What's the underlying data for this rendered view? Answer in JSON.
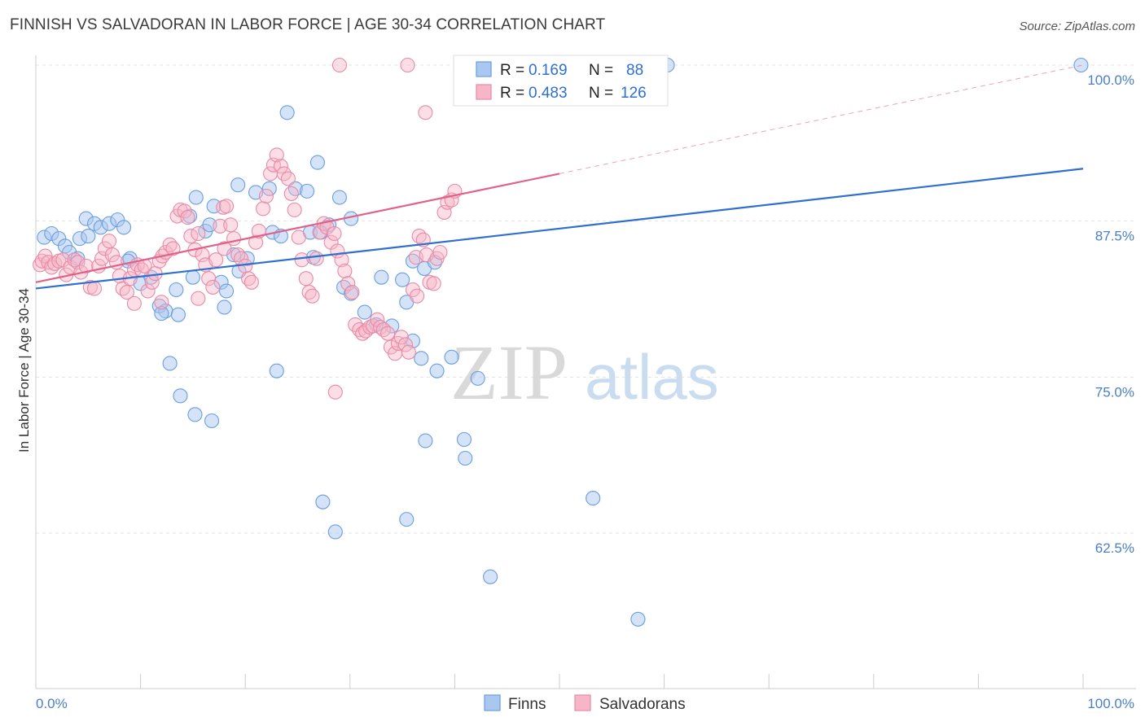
{
  "title": "FINNISH VS SALVADORAN IN LABOR FORCE | AGE 30-34 CORRELATION CHART",
  "source": "Source: ZipAtlas.com",
  "watermark": {
    "part1": "ZIP",
    "part2": "atlas"
  },
  "colors": {
    "finns_fill": "#a9c8f0",
    "finns_stroke": "#6a9ee0",
    "finns_line": "#2f6fd0",
    "salv_fill": "#f6b6c8",
    "salv_stroke": "#e88aa6",
    "salv_line": "#e0628a",
    "tick_text": "#4a7fc8",
    "grid": "#e2e2e2"
  },
  "legend_top": {
    "finns": {
      "r_label": "R =",
      "r_value": "0.169",
      "n_label": "N =",
      "n_value": "88"
    },
    "salvadorans": {
      "r_label": "R =",
      "r_value": "0.483",
      "n_label": "N =",
      "n_value": "126"
    }
  },
  "legend_bottom": {
    "finns": "Finns",
    "salvadorans": "Salvadorans"
  },
  "chart_data": {
    "type": "scatter",
    "title": "FINNISH VS SALVADORAN IN LABOR FORCE | AGE 30-34 CORRELATION CHART",
    "xlabel": "",
    "ylabel": "In Labor Force | Age 30-34",
    "xlim": [
      0,
      100
    ],
    "ylim": [
      50,
      101
    ],
    "x_tick_labels": [
      {
        "value": 0,
        "label": "0.0%"
      },
      {
        "value": 100,
        "label": "100.0%"
      }
    ],
    "y_ticks": [
      {
        "value": 100,
        "label": "100.0%"
      },
      {
        "value": 87.5,
        "label": "87.5%"
      },
      {
        "value": 75,
        "label": "75.0%"
      },
      {
        "value": 62.5,
        "label": "62.5%"
      }
    ],
    "grid": true,
    "legend_position": "top-center",
    "series": [
      {
        "name": "Finns",
        "R": 0.169,
        "N": 88,
        "trend": {
          "x": [
            0,
            100
          ],
          "y": [
            82.1,
            91.7
          ]
        },
        "points": [
          [
            0.8,
            86.2
          ],
          [
            1.5,
            86.5
          ],
          [
            2.2,
            86.1
          ],
          [
            2.8,
            85.5
          ],
          [
            3.2,
            85.0
          ],
          [
            4.0,
            84.5
          ],
          [
            4.2,
            86.1
          ],
          [
            5.0,
            86.3
          ],
          [
            4.8,
            87.7
          ],
          [
            5.6,
            87.3
          ],
          [
            6.2,
            87.0
          ],
          [
            7.0,
            87.3
          ],
          [
            7.8,
            87.6
          ],
          [
            8.4,
            87.0
          ],
          [
            9.0,
            84.5
          ],
          [
            8.8,
            84.3
          ],
          [
            10.0,
            82.5
          ],
          [
            11.0,
            83.0
          ],
          [
            11.8,
            80.7
          ],
          [
            12.4,
            80.3
          ],
          [
            13.4,
            82.0
          ],
          [
            12.0,
            80.1
          ],
          [
            13.6,
            80.0
          ],
          [
            15.0,
            83.0
          ],
          [
            14.7,
            87.9
          ],
          [
            15.3,
            89.4
          ],
          [
            16.2,
            86.7
          ],
          [
            17.0,
            88.7
          ],
          [
            16.6,
            87.2
          ],
          [
            17.7,
            82.6
          ],
          [
            18.2,
            81.9
          ],
          [
            18.0,
            80.6
          ],
          [
            18.9,
            84.8
          ],
          [
            19.4,
            83.5
          ],
          [
            20.2,
            84.5
          ],
          [
            21.0,
            89.8
          ],
          [
            19.3,
            90.4
          ],
          [
            22.3,
            90.1
          ],
          [
            24.0,
            96.2
          ],
          [
            22.6,
            86.6
          ],
          [
            23.4,
            86.3
          ],
          [
            24.8,
            90.1
          ],
          [
            25.9,
            89.9
          ],
          [
            26.2,
            86.6
          ],
          [
            26.5,
            84.6
          ],
          [
            26.9,
            92.2
          ],
          [
            27.2,
            86.6
          ],
          [
            28.0,
            87.2
          ],
          [
            29.0,
            89.4
          ],
          [
            30.1,
            87.7
          ],
          [
            29.4,
            82.2
          ],
          [
            30.1,
            81.7
          ],
          [
            31.4,
            80.2
          ],
          [
            33.0,
            83.0
          ],
          [
            32.5,
            79.2
          ],
          [
            34.0,
            79.1
          ],
          [
            35.0,
            82.8
          ],
          [
            35.4,
            81.0
          ],
          [
            36.0,
            77.9
          ],
          [
            36.8,
            76.5
          ],
          [
            37.1,
            83.7
          ],
          [
            36.0,
            84.3
          ],
          [
            38.1,
            84.2
          ],
          [
            38.3,
            75.5
          ],
          [
            39.7,
            76.6
          ],
          [
            40.9,
            70.0
          ],
          [
            41.0,
            68.5
          ],
          [
            42.2,
            74.9
          ],
          [
            43.4,
            59.0
          ],
          [
            45.2,
            100.0
          ],
          [
            47.2,
            100.0
          ],
          [
            47.3,
            100.0
          ],
          [
            48.5,
            100.0
          ],
          [
            52.0,
            100.0
          ],
          [
            55.0,
            100.0
          ],
          [
            58.0,
            100.0
          ],
          [
            60.3,
            100.0
          ],
          [
            12.8,
            76.1
          ],
          [
            13.8,
            73.5
          ],
          [
            15.2,
            72.0
          ],
          [
            16.8,
            71.5
          ],
          [
            23.0,
            75.5
          ],
          [
            27.4,
            65.0
          ],
          [
            28.6,
            62.6
          ],
          [
            35.4,
            63.6
          ],
          [
            37.2,
            69.9
          ],
          [
            53.2,
            65.3
          ],
          [
            57.5,
            55.6
          ],
          [
            99.8,
            100.0
          ]
        ]
      },
      {
        "name": "Salvadorans",
        "R": 0.483,
        "N": 126,
        "trend": {
          "x": [
            0,
            100
          ],
          "y": [
            82.6,
            100.0
          ]
        },
        "points": [
          [
            0.4,
            84.0
          ],
          [
            0.6,
            84.3
          ],
          [
            0.9,
            84.7
          ],
          [
            1.2,
            84.2
          ],
          [
            1.5,
            83.8
          ],
          [
            1.8,
            84.1
          ],
          [
            2.2,
            84.3
          ],
          [
            2.6,
            84.4
          ],
          [
            2.9,
            83.2
          ],
          [
            3.3,
            83.8
          ],
          [
            3.7,
            84.4
          ],
          [
            4.0,
            84.2
          ],
          [
            4.3,
            83.4
          ],
          [
            4.8,
            83.9
          ],
          [
            5.2,
            82.2
          ],
          [
            5.6,
            82.1
          ],
          [
            6.0,
            83.9
          ],
          [
            6.3,
            84.5
          ],
          [
            6.6,
            85.3
          ],
          [
            7.0,
            85.9
          ],
          [
            7.3,
            84.8
          ],
          [
            7.7,
            84.2
          ],
          [
            8.0,
            83.1
          ],
          [
            8.3,
            82.1
          ],
          [
            8.7,
            81.8
          ],
          [
            9.0,
            82.9
          ],
          [
            9.4,
            83.6
          ],
          [
            9.7,
            84.0
          ],
          [
            10.1,
            83.6
          ],
          [
            10.4,
            83.9
          ],
          [
            10.7,
            81.9
          ],
          [
            11.1,
            82.6
          ],
          [
            11.4,
            83.3
          ],
          [
            11.8,
            84.3
          ],
          [
            12.1,
            84.7
          ],
          [
            12.4,
            85.0
          ],
          [
            12.8,
            85.6
          ],
          [
            13.1,
            85.3
          ],
          [
            13.5,
            87.9
          ],
          [
            13.8,
            88.4
          ],
          [
            14.2,
            88.3
          ],
          [
            14.5,
            87.8
          ],
          [
            14.8,
            86.3
          ],
          [
            15.2,
            85.2
          ],
          [
            15.5,
            86.5
          ],
          [
            15.9,
            84.8
          ],
          [
            16.2,
            84.0
          ],
          [
            16.5,
            82.9
          ],
          [
            16.9,
            82.2
          ],
          [
            17.2,
            84.4
          ],
          [
            17.6,
            87.1
          ],
          [
            17.9,
            88.6
          ],
          [
            18.2,
            88.7
          ],
          [
            18.6,
            87.2
          ],
          [
            18.9,
            86.1
          ],
          [
            19.3,
            84.8
          ],
          [
            19.6,
            84.5
          ],
          [
            20.0,
            83.9
          ],
          [
            20.3,
            82.9
          ],
          [
            20.6,
            82.6
          ],
          [
            21.0,
            85.8
          ],
          [
            21.3,
            86.7
          ],
          [
            21.7,
            88.5
          ],
          [
            22.0,
            89.5
          ],
          [
            22.4,
            91.3
          ],
          [
            22.7,
            92.0
          ],
          [
            23.0,
            92.8
          ],
          [
            23.4,
            91.9
          ],
          [
            23.7,
            91.3
          ],
          [
            24.1,
            90.9
          ],
          [
            24.4,
            89.7
          ],
          [
            24.7,
            88.4
          ],
          [
            25.1,
            86.2
          ],
          [
            25.4,
            84.4
          ],
          [
            25.8,
            82.9
          ],
          [
            26.1,
            81.8
          ],
          [
            26.4,
            81.5
          ],
          [
            26.8,
            84.5
          ],
          [
            27.1,
            86.6
          ],
          [
            27.5,
            87.3
          ],
          [
            27.8,
            87.0
          ],
          [
            28.2,
            85.8
          ],
          [
            28.5,
            86.5
          ],
          [
            28.8,
            85.1
          ],
          [
            29.2,
            84.4
          ],
          [
            29.5,
            83.5
          ],
          [
            29.8,
            82.5
          ],
          [
            30.2,
            81.8
          ],
          [
            30.5,
            79.2
          ],
          [
            30.9,
            78.8
          ],
          [
            31.2,
            78.5
          ],
          [
            31.5,
            78.7
          ],
          [
            31.9,
            79.0
          ],
          [
            32.2,
            79.1
          ],
          [
            32.6,
            79.6
          ],
          [
            32.9,
            79.0
          ],
          [
            33.2,
            78.8
          ],
          [
            33.6,
            78.5
          ],
          [
            33.9,
            77.4
          ],
          [
            34.3,
            76.9
          ],
          [
            34.6,
            77.7
          ],
          [
            34.9,
            78.2
          ],
          [
            35.3,
            77.6
          ],
          [
            35.6,
            77.0
          ],
          [
            36.0,
            82.0
          ],
          [
            36.3,
            84.6
          ],
          [
            36.6,
            86.3
          ],
          [
            37.0,
            86.0
          ],
          [
            37.3,
            84.8
          ],
          [
            37.6,
            82.6
          ],
          [
            38.0,
            82.5
          ],
          [
            38.3,
            84.5
          ],
          [
            38.6,
            85.0
          ],
          [
            39.0,
            88.2
          ],
          [
            39.3,
            89.0
          ],
          [
            39.7,
            89.2
          ],
          [
            40.0,
            89.9
          ],
          [
            12.0,
            81.0
          ],
          [
            9.4,
            80.9
          ],
          [
            15.5,
            81.3
          ],
          [
            18.0,
            85.3
          ],
          [
            29.0,
            100.0
          ],
          [
            35.5,
            100.0
          ],
          [
            37.2,
            96.2
          ],
          [
            36.4,
            81.5
          ],
          [
            28.6,
            73.8
          ]
        ]
      }
    ]
  }
}
